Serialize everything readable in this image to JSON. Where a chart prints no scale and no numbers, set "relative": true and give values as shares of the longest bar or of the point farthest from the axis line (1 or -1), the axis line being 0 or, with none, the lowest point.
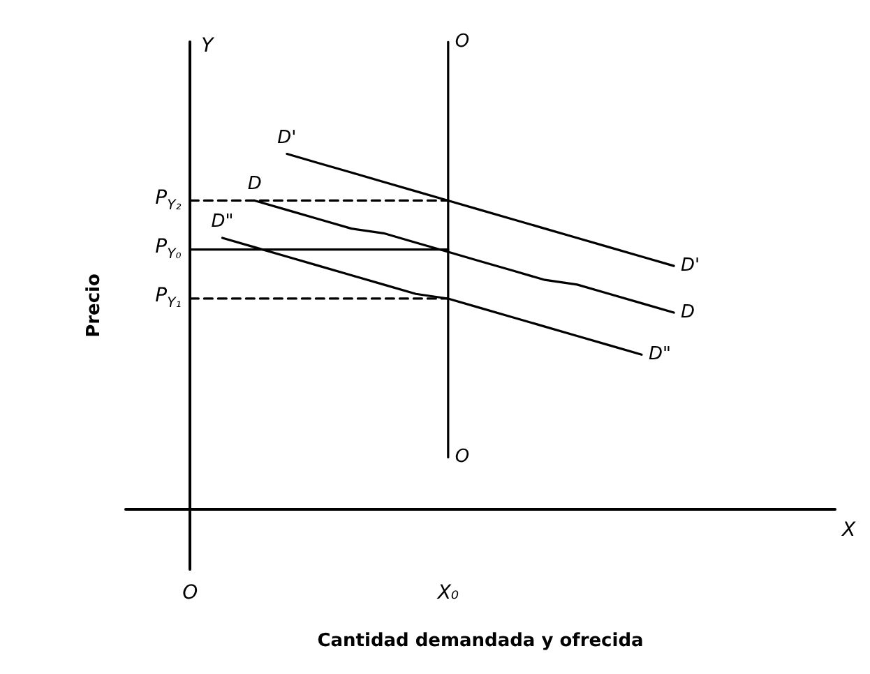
{
  "chart_data": {
    "type": "line",
    "relative": true,
    "xlabel": "Cantidad demandada y ofrecida",
    "ylabel": "Precio",
    "categories": [
      null,
      null,
      "O",
      null,
      null,
      null,
      null,
      null,
      null,
      null,
      "X₀",
      null,
      null,
      null,
      null,
      null,
      null,
      null,
      null,
      null,
      null,
      null,
      null
    ],
    "marker": "none",
    "grid": false,
    "legend": false,
    "series": [
      {
        "name": "D'",
        "color": "#000000",
        "values": [
          null,
          null,
          null,
          null,
          null,
          0.76,
          0.74,
          0.72,
          0.7,
          0.68,
          0.66,
          0.64,
          0.62,
          0.6,
          0.58,
          0.56,
          0.54,
          0.52,
          null,
          null,
          null,
          null,
          null
        ],
        "line_style": "solid"
      },
      {
        "name": "D",
        "color": "#000000",
        "values": [
          null,
          null,
          null,
          null,
          0.66,
          0.64,
          0.62,
          0.6,
          0.59,
          0.57,
          0.55,
          0.53,
          0.51,
          0.49,
          0.48,
          0.46,
          0.44,
          0.42,
          null,
          null,
          null,
          null,
          null
        ],
        "line_style": "solid"
      },
      {
        "name": "D\"",
        "color": "#000000",
        "values": [
          null,
          null,
          null,
          0.58,
          0.56,
          0.54,
          0.52,
          0.5,
          0.48,
          0.46,
          0.45,
          0.43,
          0.41,
          0.39,
          0.37,
          0.35,
          0.33,
          null,
          null,
          null,
          null,
          null,
          null
        ],
        "line_style": "solid"
      },
      {
        "name": "O",
        "color": "#000000",
        "x": [
          "X₀",
          "X₀"
        ],
        "values": [
          1,
          0.11
        ],
        "line_style": "solid"
      },
      {
        "color": "#000000",
        "x": [
          "O",
          "X₀"
        ],
        "values": [
          0.66,
          0.66
        ],
        "line_style": "dashed"
      },
      {
        "color": "#000000",
        "x": [
          "O",
          "X₀"
        ],
        "values": [
          0.555,
          0.555
        ],
        "line_style": "solid"
      },
      {
        "color": "#000000",
        "x": [
          "O",
          "X₀"
        ],
        "values": [
          0.45,
          0.45
        ],
        "line_style": "dashed"
      }
    ],
    "annotations": [
      {
        "text": "P$_{Y₂}$",
        "x": "O",
        "y": 0.66
      },
      {
        "text": "P$_{Y₀}$",
        "x": "O",
        "y": 0.555
      },
      {
        "text": "P$_{Y₁}$",
        "x": "O",
        "y": 0.45
      },
      "Y",
      "X"
    ]
  }
}
